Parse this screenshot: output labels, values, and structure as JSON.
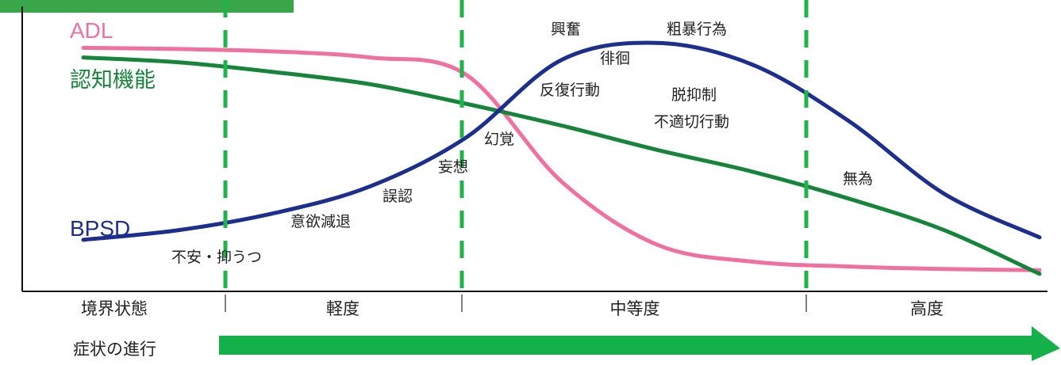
{
  "chart_data": {
    "type": "line",
    "title": "",
    "xlabel": "症状の進行",
    "ylabel": "",
    "grid": false,
    "stages": [
      "境界状態",
      "軽度",
      "中等度",
      "高度"
    ],
    "x": [
      0,
      10,
      20,
      30,
      40,
      50,
      60,
      70,
      80,
      90,
      100
    ],
    "xlim": [
      0,
      100
    ],
    "ylim": [
      0,
      100
    ],
    "series": [
      {
        "name": "ADL",
        "color": "#f0709e",
        "values": [
          95,
          94.5,
          93.5,
          91,
          84,
          40,
          14,
          7,
          5,
          4,
          3.5
        ]
      },
      {
        "name": "認知機能",
        "color": "#16843a",
        "values": [
          91,
          89,
          85,
          80,
          72,
          63,
          53,
          44,
          33,
          20,
          2
        ]
      },
      {
        "name": "BPSD",
        "color": "#1c2f8c",
        "values": [
          16,
          20,
          27,
          38,
          58,
          90,
          97,
          88,
          65,
          35,
          17
        ]
      }
    ],
    "annotations": [
      "不安・抑うつ",
      "意欲減退",
      "誤認",
      "妄想",
      "幻覚",
      "反復行動",
      "徘徊",
      "興奮",
      "粗暴行為",
      "脱抑制",
      "不適切行動",
      "無為"
    ]
  },
  "colors": {
    "stage_divider": "#22b24c",
    "progress_arrow": "#14b04a",
    "axis": "#111111"
  }
}
